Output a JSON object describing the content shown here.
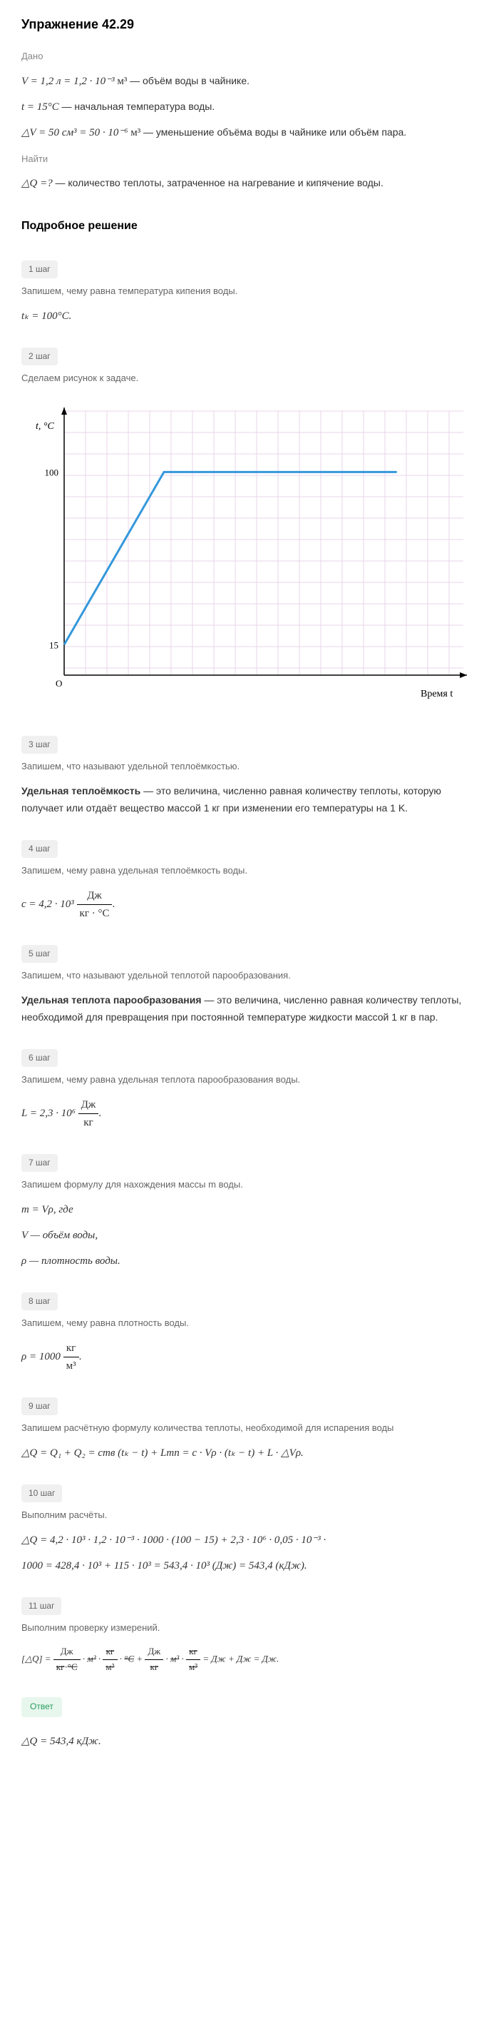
{
  "title": "Упражнение 42.29",
  "dano_label": "Дано",
  "given": {
    "line1_formula": "V = 1,2 л = 1,2 · 10⁻³",
    "line1_unit": "м³",
    "line1_desc": "— объём воды в чайнике.",
    "line2_formula": "t = 15°C",
    "line2_desc": "— начальная температура воды.",
    "line3_formula": "△V = 50 см³ = 50 · 10⁻⁶",
    "line3_unit": "м³",
    "line3_desc": "— уменьшение объёма воды в чайнике или объём пара."
  },
  "find_label": "Найти",
  "find": {
    "formula": "△Q =?",
    "desc": "— количество теплоты, затраченное на нагревание и кипячение воды."
  },
  "solution_title": "Подробное решение",
  "steps": {
    "s1": {
      "badge": "1 шаг",
      "text": "Запишем, чему равна температура кипения воды.",
      "formula": "tₖ = 100°C."
    },
    "s2": {
      "badge": "2 шаг",
      "text": "Сделаем рисунок к задаче."
    },
    "s3": {
      "badge": "3 шаг",
      "text": "Запишем, что называют удельной теплоёмкостью.",
      "def_bold": "Удельная теплоёмкость",
      "def_rest": " — это величина, численно равная количеству теплоты, которую получает или отдаёт вещество массой 1 кг при изменении его температуры на 1 K."
    },
    "s4": {
      "badge": "4 шаг",
      "text": "Запишем, чему равна удельная теплоёмкость воды.",
      "formula_prefix": "c = 4,2 · 10³",
      "frac_num": "Дж",
      "frac_den": "кг · °C",
      "formula_suffix": "."
    },
    "s5": {
      "badge": "5 шаг",
      "text": "Запишем, что называют удельной теплотой парообразования.",
      "def_bold": "Удельная теплота парообразования",
      "def_rest": " — это величина, численно равная количеству теплоты, необходимой для превращения при постоянной температуре жидкости массой 1 кг в пар."
    },
    "s6": {
      "badge": "6 шаг",
      "text": "Запишем, чему равна удельная теплота парообразования воды.",
      "formula_prefix": "L = 2,3 · 10⁶",
      "frac_num": "Дж",
      "frac_den": "кг",
      "formula_suffix": "."
    },
    "s7": {
      "badge": "7 шаг",
      "text": "Запишем формулу для нахождения массы m воды.",
      "formula": "m = Vρ, где",
      "line_v": "V — объём воды,",
      "line_rho": "ρ — плотность воды."
    },
    "s8": {
      "badge": "8 шаг",
      "text": "Запишем, чему равна плотность воды.",
      "formula_prefix": "ρ = 1000",
      "frac_num": "кг",
      "frac_den": "м³",
      "formula_suffix": "."
    },
    "s9": {
      "badge": "9 шаг",
      "text": "Запишем расчётную формулу количества теплоты, необходимой для испарения воды",
      "formula": "△Q = Q₁ + Q₂ = cmв (tₖ − t) + Lmп = c · Vρ · (tₖ − t) + L · △Vρ."
    },
    "s10": {
      "badge": "10 шаг",
      "text": "Выполним расчёты.",
      "formula_l1": "△Q = 4,2 · 10³ · 1,2 · 10⁻³ · 1000 · (100 − 15) + 2,3 · 10⁶ · 0,05 · 10⁻³ ·",
      "formula_l2": "1000 = 428,4 · 10³ + 115 · 10³ = 543,4 · 10³ (Дж) = 543,4 (кДж)."
    },
    "s11": {
      "badge": "11 шаг",
      "text": "Выполним проверку измерений.",
      "formula": "[△Q] = Дж/(кг·°C) · м³ · кг/м³ · °C + Дж/кг · м³ · кг/м³ = Дж + Дж = Дж."
    }
  },
  "chart": {
    "grid_color": "#e8d4e8",
    "axis_color": "#000000",
    "line_color": "#3498db",
    "line_width": 3,
    "bg_color": "#ffffff",
    "ylabel": "t, °C",
    "xlabel": "Время t",
    "y_ticks": [
      15,
      100
    ],
    "ylim": [
      0,
      130
    ],
    "xlim": [
      0,
      12
    ],
    "origin_label": "O",
    "points": [
      [
        0,
        15
      ],
      [
        3,
        100
      ],
      [
        10,
        100
      ]
    ],
    "label_fontsize": 14,
    "tick_fontsize": 13
  },
  "answer": {
    "label": "Ответ",
    "formula": "△Q = 543,4 кДж."
  }
}
